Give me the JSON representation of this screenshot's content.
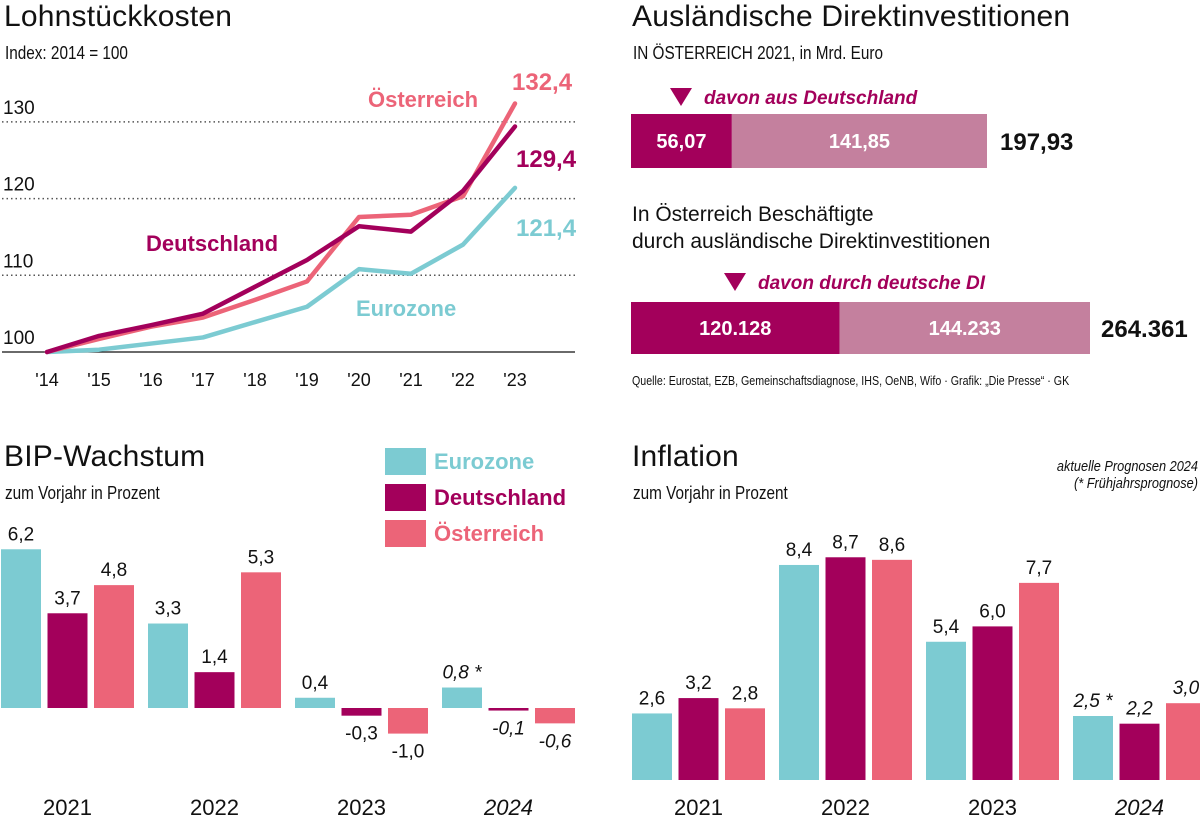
{
  "colors": {
    "eurozone": "#7ccbd2",
    "deutschland": "#a3005b",
    "oesterreich": "#ec6478",
    "deutschland_light": "#c4809e"
  },
  "lohn": {
    "title": "Lohnstückkosten",
    "subtitle": "Index: 2014 = 100"
  },
  "fdi": {
    "title": "Ausländische Direktinvestitionen",
    "subtitle": "IN ÖSTERREICH 2021, in Mrd. Euro",
    "bar1": {
      "marker": "davon aus Deutschland",
      "de_value": 56.07,
      "de_label": "56,07",
      "rest_value": 141.85,
      "rest_label": "141,85",
      "total_label": "197,93"
    },
    "heading2_line1": "In Österreich Beschäftigte",
    "heading2_line2": "durch ausländische Direktinvestitionen",
    "bar2": {
      "marker": "davon durch deutsche DI",
      "de_value": 120128,
      "de_label": "120.128",
      "rest_value": 144233,
      "rest_label": "144.233",
      "total_label": "264.361"
    },
    "source": "Quelle: Eurostat, EZB, Gemeinschaftsdiagnose, IHS, OeNB, Wifo · Grafik: „Die Presse“ · GK"
  },
  "bip": {
    "title": "BIP-Wachstum",
    "subtitle": "zum Vorjahr in Prozent"
  },
  "legend": [
    "Eurozone",
    "Deutschland",
    "Österreich"
  ],
  "inflation": {
    "title": "Inflation",
    "subtitle": "zum Vorjahr in Prozent",
    "note_line1": "aktuelle Prognosen 2024",
    "note_line2": "(* Frühjahrsprognose)"
  },
  "chart_data": [
    {
      "type": "line",
      "title": "Lohnstückkosten",
      "subtitle": "Index: 2014 = 100",
      "x": [
        "'14",
        "'15",
        "'16",
        "'17",
        "'18",
        "'19",
        "'20",
        "'21",
        "'22",
        "'23"
      ],
      "ylim": [
        100,
        130
      ],
      "yticks": [
        100,
        110,
        120,
        130
      ],
      "grid": true,
      "series": [
        {
          "name": "Österreich",
          "key": "oesterreich",
          "end_label": "132,4",
          "values": [
            100,
            101.7,
            103.3,
            104.5,
            106.8,
            109.2,
            117.6,
            117.9,
            120.3,
            132.4
          ]
        },
        {
          "name": "Deutschland",
          "key": "deutschland",
          "end_label": "129,4",
          "values": [
            100,
            102.1,
            103.5,
            105.0,
            108.5,
            112.0,
            116.4,
            115.7,
            121.0,
            129.4
          ]
        },
        {
          "name": "Eurozone",
          "key": "eurozone",
          "end_label": "121,4",
          "values": [
            100,
            100.3,
            101.1,
            101.9,
            103.9,
            105.9,
            110.8,
            110.2,
            114.0,
            121.4
          ]
        }
      ]
    },
    {
      "type": "bar",
      "title": "BIP-Wachstum",
      "ylabel": "zum Vorjahr in Prozent",
      "categories": [
        "2021",
        "2022",
        "2023",
        "2024"
      ],
      "italic_categories": [
        "2024"
      ],
      "series": [
        {
          "name": "Eurozone",
          "key": "eurozone",
          "values": [
            6.2,
            3.3,
            0.4,
            0.8
          ],
          "labels": [
            "6,2",
            "3,3",
            "0,4",
            "0,8 *"
          ]
        },
        {
          "name": "Deutschland",
          "key": "deutschland",
          "values": [
            3.7,
            1.4,
            -0.3,
            -0.1
          ],
          "labels": [
            "3,7",
            "1,4",
            "-0,3",
            "-0,1"
          ]
        },
        {
          "name": "Österreich",
          "key": "oesterreich",
          "values": [
            4.8,
            5.3,
            -1.0,
            -0.6
          ],
          "labels": [
            "4,8",
            "5,3",
            "-1,0",
            "-0,6"
          ]
        }
      ]
    },
    {
      "type": "bar",
      "title": "Inflation",
      "ylabel": "zum Vorjahr in Prozent",
      "categories": [
        "2021",
        "2022",
        "2023",
        "2024"
      ],
      "italic_categories": [
        "2024"
      ],
      "series": [
        {
          "name": "Eurozone",
          "key": "eurozone",
          "values": [
            2.6,
            8.4,
            5.4,
            2.5
          ],
          "labels": [
            "2,6",
            "8,4",
            "5,4",
            "2,5 *"
          ]
        },
        {
          "name": "Deutschland",
          "key": "deutschland",
          "values": [
            3.2,
            8.7,
            6.0,
            2.2
          ],
          "labels": [
            "3,2",
            "8,7",
            "6,0",
            "2,2"
          ]
        },
        {
          "name": "Österreich",
          "key": "oesterreich",
          "values": [
            2.8,
            8.6,
            7.7,
            3.0
          ],
          "labels": [
            "2,8",
            "8,6",
            "7,7",
            "3,0"
          ]
        }
      ]
    }
  ]
}
